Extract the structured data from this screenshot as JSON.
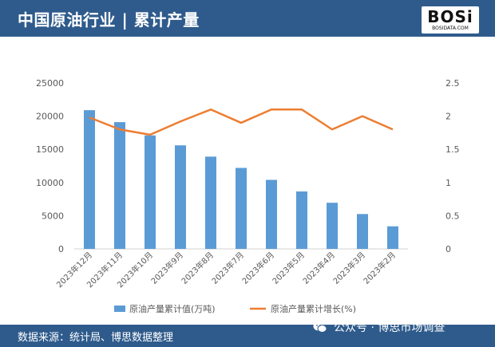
{
  "header": {
    "title": "中国原油行业 | 累计产量"
  },
  "logo": {
    "mark": "BOSi",
    "sub": "BOSIDATA.COM"
  },
  "footer": {
    "source": "数据来源：统计局、博思数据整理",
    "wechat": "公众号 · 博思市场调查"
  },
  "chart_data": {
    "type": "bar",
    "categories": [
      "2023年12月",
      "2023年11月",
      "2023年10月",
      "2023年9月",
      "2023年8月",
      "2023年7月",
      "2023年6月",
      "2023年5月",
      "2023年4月",
      "2023年3月",
      "2023年2月"
    ],
    "series": [
      {
        "name": "原油产量累计值(万吨)",
        "type": "bar",
        "axis": "left",
        "color": "#5b9bd5",
        "values": [
          20900,
          19100,
          17100,
          15600,
          13900,
          12200,
          10400,
          8650,
          6950,
          5250,
          3400
        ]
      },
      {
        "name": "原油产量累计增长(%)",
        "type": "line",
        "axis": "right",
        "color": "#ed7d31",
        "values": [
          1.98,
          1.8,
          1.72,
          1.92,
          2.1,
          1.9,
          2.1,
          2.1,
          1.8,
          2.0,
          1.8
        ]
      }
    ],
    "ylim": [
      0,
      25000
    ],
    "yticks": [
      "0",
      "5000",
      "10000",
      "15000",
      "20000",
      "25000"
    ],
    "y2lim": [
      0,
      2.5
    ],
    "y2ticks": [
      "0",
      "0.5",
      "1",
      "1.5",
      "2",
      "2.5"
    ],
    "legend": "bottom",
    "grid": false
  }
}
